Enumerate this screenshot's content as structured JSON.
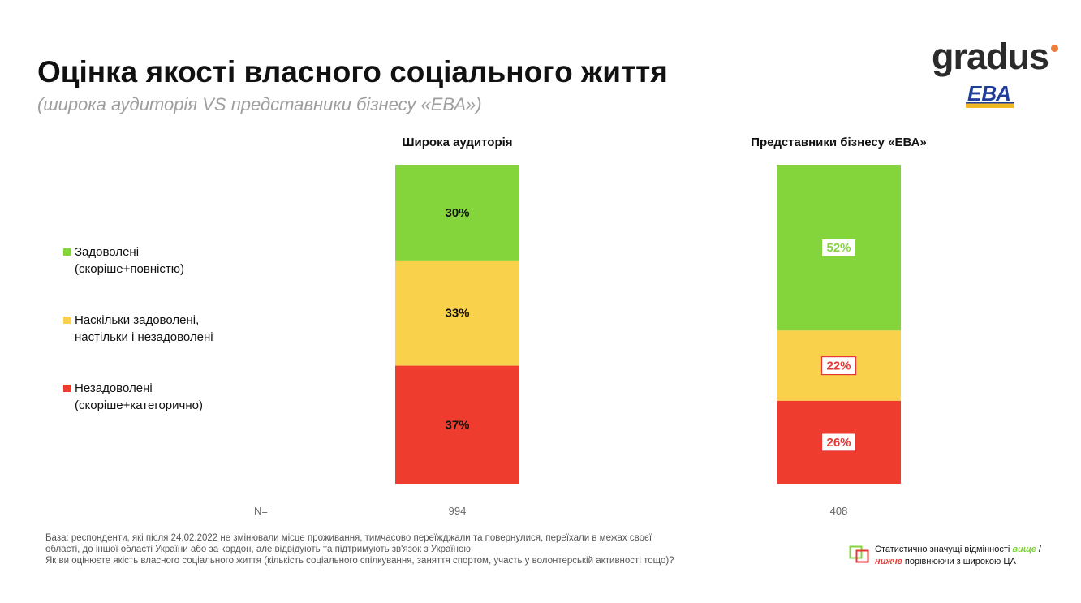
{
  "header": {
    "title": "Оцінка якості власного соціального життя",
    "subtitle": "(широка аудиторія VS представники бізнесу «ЕВА»)"
  },
  "logos": {
    "gradus": "gradus",
    "eva": "ЕВА",
    "gradus_dot_color": "#f07c3a"
  },
  "colors": {
    "satisfied": "#84d43c",
    "neutral": "#fad14b",
    "dissatisfied": "#ee3d2f",
    "text": "#111111",
    "n_text": "#666666"
  },
  "legend": [
    {
      "line1": "Задоволені",
      "line2": "(скоріше+повністю)",
      "color": "#84d43c"
    },
    {
      "line1": "Наскільки задоволені,",
      "line2": "настільки і незадоволені",
      "color": "#fad14b"
    },
    {
      "line1": "Незадоволені",
      "line2": "(скоріше+категорично)",
      "color": "#ee3d2f"
    }
  ],
  "chart_data": {
    "type": "bar",
    "stacked": true,
    "normalized_percent": true,
    "categories": [
      "Широка аудиторія",
      "Представники бізнесу «ЕВА»"
    ],
    "series": [
      {
        "name": "Задоволені (скоріше+повністю)",
        "values": [
          30,
          52
        ],
        "color": "#84d43c"
      },
      {
        "name": "Наскільки задоволені, настільки і незадоволені",
        "values": [
          33,
          22
        ],
        "color": "#fad14b"
      },
      {
        "name": "Незадоволені (скоріше+категорично)",
        "values": [
          37,
          26
        ],
        "color": "#ee3d2f"
      }
    ],
    "labels": [
      [
        "30%",
        "33%",
        "37%"
      ],
      [
        "52%",
        "22%",
        "26%"
      ]
    ],
    "significance": [
      [
        "none",
        "none",
        "none"
      ],
      [
        "higher",
        "lower",
        "lower"
      ]
    ],
    "n_label": "N=",
    "n_values": [
      "994",
      "408"
    ]
  },
  "footnote": {
    "line1": "База: респонденти, які після 24.02.2022 не змінювали місце проживання, тимчасово переїжджали та повернулися, переїхали в межах своєї",
    "line2": "області, до іншої області України або за кордон, але відвідують та підтримують зв'язок з Україною",
    "line3": "Як ви оцінюєте якість власного соціального життя (кількість соціального спілкування, заняття спортом, участь у волонтерській активності тощо)?"
  },
  "sig_legend": {
    "part1": "Статистично значущі відмінності ",
    "higher": "вище",
    "sep": " /",
    "lower": "нижче",
    "part2": " порівнюючи з широкою ЦА",
    "higher_color": "#84d43c",
    "lower_color": "#e53935"
  }
}
